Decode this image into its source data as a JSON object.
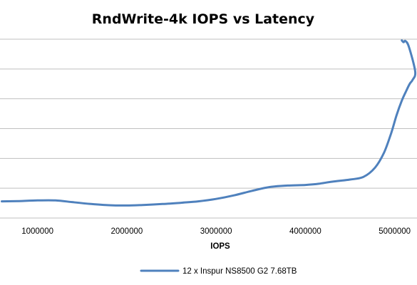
{
  "chart_data": {
    "type": "line",
    "title": "RndWrite-4k IOPS vs Latency",
    "xlabel": "IOPS",
    "ylabel": "",
    "x_ticks": [
      1000000,
      2000000,
      3000000,
      4000000,
      5000000
    ],
    "xlim": [
      580000,
      5250000
    ],
    "ylim": [
      0,
      6
    ],
    "grid": true,
    "legend_position": "bottom",
    "series": [
      {
        "name": "12 x Inspur NS8500 G2 7.68TB",
        "color": "#4f81bd",
        "x": [
          600000,
          800000,
          1000000,
          1200000,
          1400000,
          1600000,
          1800000,
          2000000,
          2200000,
          2400000,
          2600000,
          2800000,
          3000000,
          3200000,
          3400000,
          3600000,
          3800000,
          4000000,
          4150000,
          4300000,
          4500000,
          4650000,
          4780000,
          4880000,
          4960000,
          5020000,
          5080000,
          5130000,
          5170000,
          5200000,
          5230000,
          5160000,
          5120000,
          5100000,
          5080000
        ],
        "y": [
          0.56,
          0.57,
          0.59,
          0.59,
          0.53,
          0.47,
          0.43,
          0.42,
          0.44,
          0.47,
          0.51,
          0.56,
          0.64,
          0.76,
          0.91,
          1.04,
          1.09,
          1.11,
          1.15,
          1.22,
          1.29,
          1.38,
          1.69,
          2.19,
          2.84,
          3.44,
          3.94,
          4.27,
          4.51,
          4.63,
          4.91,
          5.74,
          5.94,
          5.9,
          5.96
        ]
      }
    ]
  }
}
